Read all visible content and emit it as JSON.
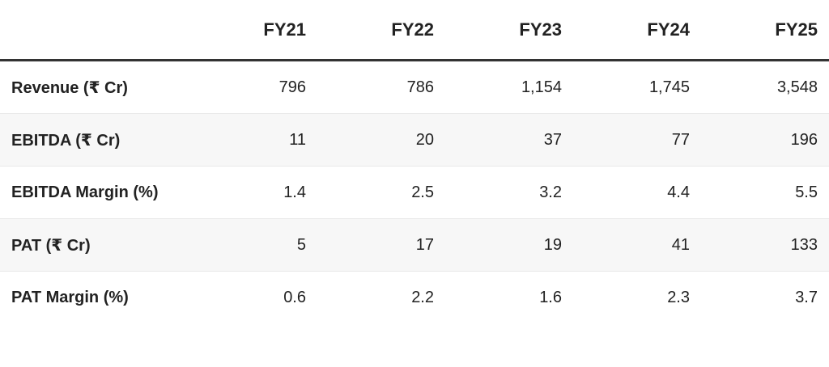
{
  "table": {
    "columns": [
      "FY21",
      "FY22",
      "FY23",
      "FY24",
      "FY25"
    ],
    "rows": [
      {
        "label": "Revenue (₹ Cr)",
        "values": [
          "796",
          "786",
          "1,154",
          "1,745",
          "3,548"
        ]
      },
      {
        "label": "EBITDA (₹ Cr)",
        "values": [
          "11",
          "20",
          "37",
          "77",
          "196"
        ]
      },
      {
        "label": "EBITDA Margin (%)",
        "values": [
          "1.4",
          "2.5",
          "3.2",
          "4.4",
          "5.5"
        ]
      },
      {
        "label": "PAT (₹ Cr)",
        "values": [
          "5",
          "17",
          "19",
          "41",
          "133"
        ]
      },
      {
        "label": "PAT Margin (%)",
        "values": [
          "0.6",
          "2.2",
          "1.6",
          "2.3",
          "3.7"
        ]
      }
    ]
  }
}
